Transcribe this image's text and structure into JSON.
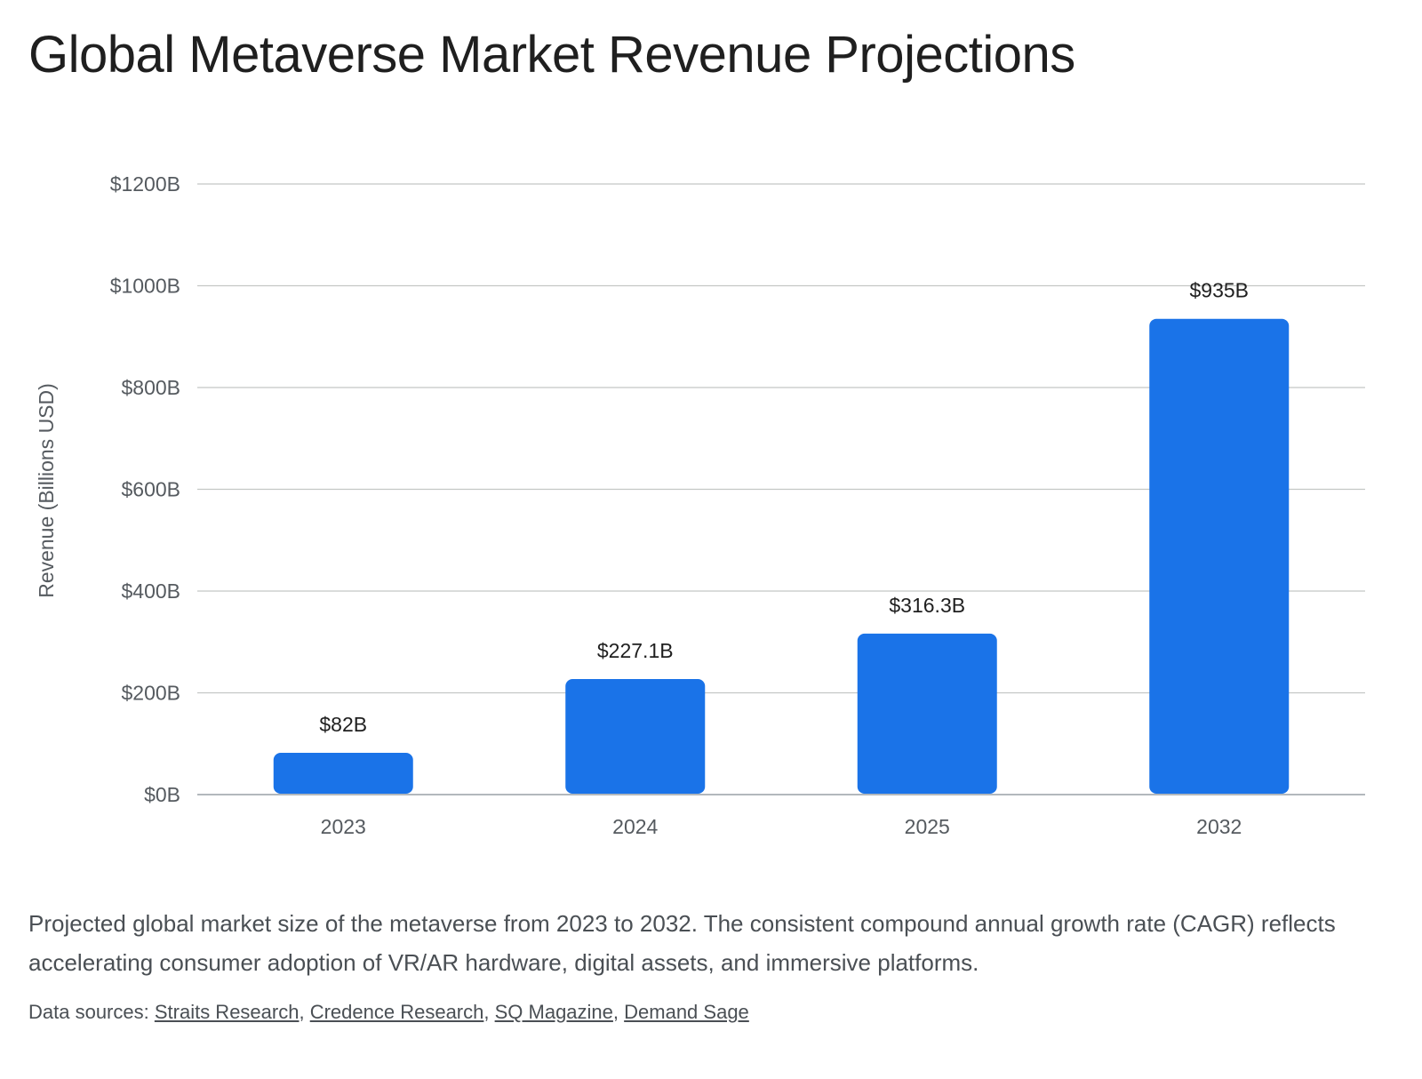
{
  "title": "Global Metaverse Market Revenue Projections",
  "caption": "Projected global market size of the metaverse from 2023 to 2032. The consistent compound annual growth rate (CAGR) reflects accelerating consumer adoption of VR/AR hardware, digital assets, and immersive platforms.",
  "sources": {
    "prefix": "Data sources: ",
    "links": [
      "Straits Research",
      "Credence Research",
      "SQ Magazine",
      "Demand Sage"
    ],
    "separator": ", "
  },
  "colors": {
    "bar": "#1a73e8",
    "grid": "#c4c7c5",
    "baseline": "#9aa0a6"
  },
  "chart_data": {
    "type": "bar",
    "title": "Global Metaverse Market Revenue Projections",
    "xlabel": "",
    "ylabel": "Revenue (Billions USD)",
    "categories": [
      "2023",
      "2024",
      "2025",
      "2032"
    ],
    "values": [
      82,
      227.1,
      316.3,
      935
    ],
    "data_labels": [
      "$82B",
      "$227.1B",
      "$316.3B",
      "$935B"
    ],
    "ylim": [
      0,
      1200
    ],
    "yticks": [
      0,
      200,
      400,
      600,
      800,
      1000,
      1200
    ],
    "ytick_labels": [
      "$0B",
      "$200B",
      "$400B",
      "$600B",
      "$800B",
      "$1000B",
      "$1200B"
    ],
    "grid": true,
    "legend": "none"
  }
}
